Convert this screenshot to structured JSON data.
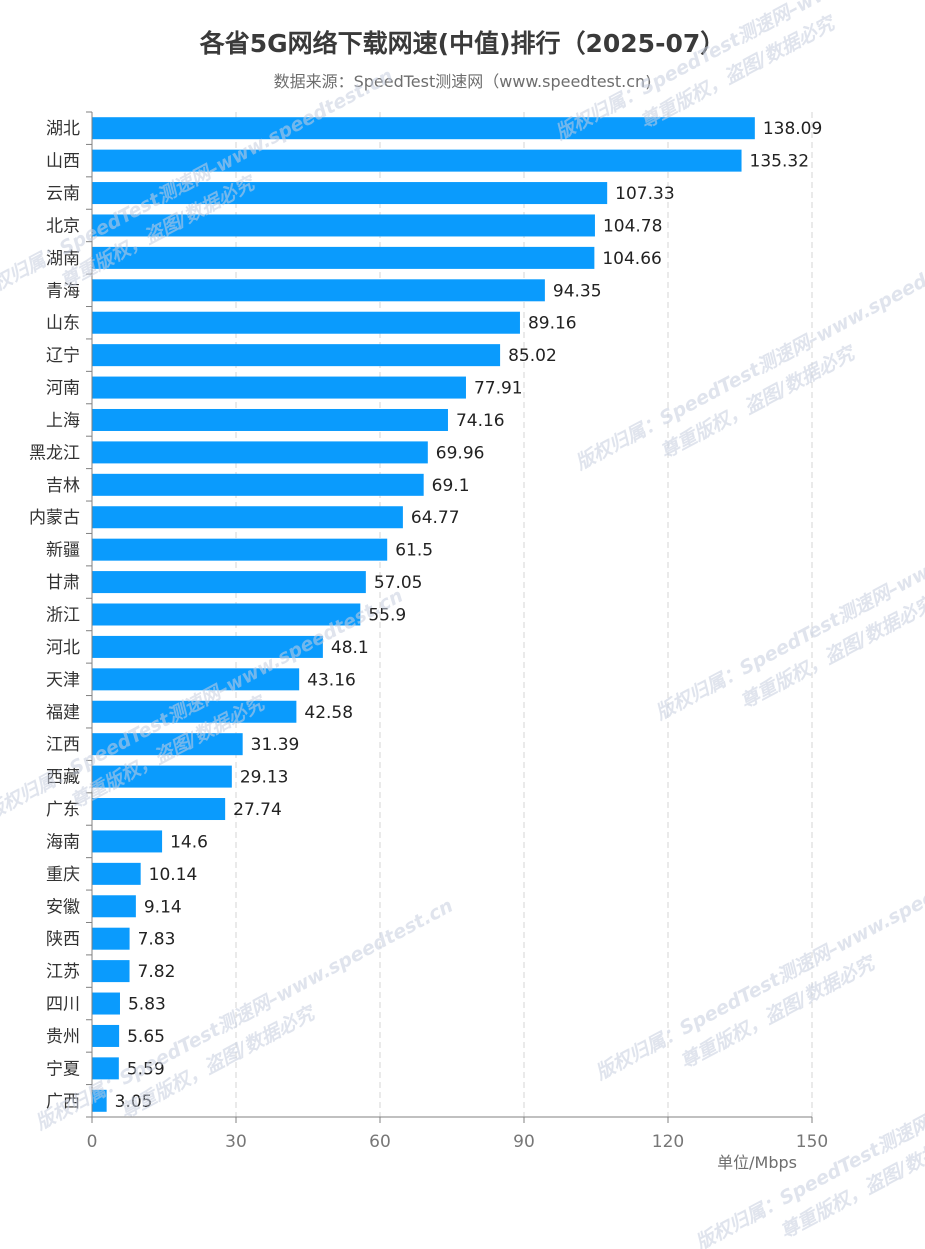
{
  "title": "各省5G网络下载网速(中值)排行（2025-07）",
  "subtitle": "数据来源：SpeedTest测速网（www.speedtest.cn)",
  "watermark": {
    "line1": "版权归属：SpeedTest测速网–www.speedtest.cn",
    "line2": "尊重版权，盗图/数据必究"
  },
  "colors": {
    "bar": "#0a9bfd",
    "grid": "#d6d6d6",
    "axis": "#808080"
  },
  "chart_data": {
    "type": "bar",
    "orientation": "horizontal",
    "categories": [
      "湖北",
      "山西",
      "云南",
      "北京",
      "湖南",
      "青海",
      "山东",
      "辽宁",
      "河南",
      "上海",
      "黑龙江",
      "吉林",
      "内蒙古",
      "新疆",
      "甘肃",
      "浙江",
      "河北",
      "天津",
      "福建",
      "江西",
      "西藏",
      "广东",
      "海南",
      "重庆",
      "安徽",
      "陕西",
      "江苏",
      "四川",
      "贵州",
      "宁夏",
      "广西"
    ],
    "values": [
      138.09,
      135.32,
      107.33,
      104.78,
      104.66,
      94.35,
      89.16,
      85.02,
      77.91,
      74.16,
      69.96,
      69.1,
      64.77,
      61.5,
      57.05,
      55.9,
      48.1,
      43.16,
      42.58,
      31.39,
      29.13,
      27.74,
      14.6,
      10.14,
      9.14,
      7.83,
      7.82,
      5.83,
      5.65,
      5.59,
      3.05
    ],
    "value_labels": [
      "138.09",
      "135.32",
      "107.33",
      "104.78",
      "104.66",
      "94.35",
      "89.16",
      "85.02",
      "77.91",
      "74.16",
      "69.96",
      "69.1",
      "64.77",
      "61.5",
      "57.05",
      "55.9",
      "48.1",
      "43.16",
      "42.58",
      "31.39",
      "29.13",
      "27.74",
      "14.6",
      "10.14",
      "9.14",
      "7.83",
      "7.82",
      "5.83",
      "5.65",
      "5.59",
      "3.05"
    ],
    "xlim": [
      0,
      150
    ],
    "xticks": [
      "0",
      "30",
      "60",
      "90",
      "120",
      "150"
    ],
    "xlabel": "单位/Mbps",
    "grid": "vertical dashed"
  }
}
